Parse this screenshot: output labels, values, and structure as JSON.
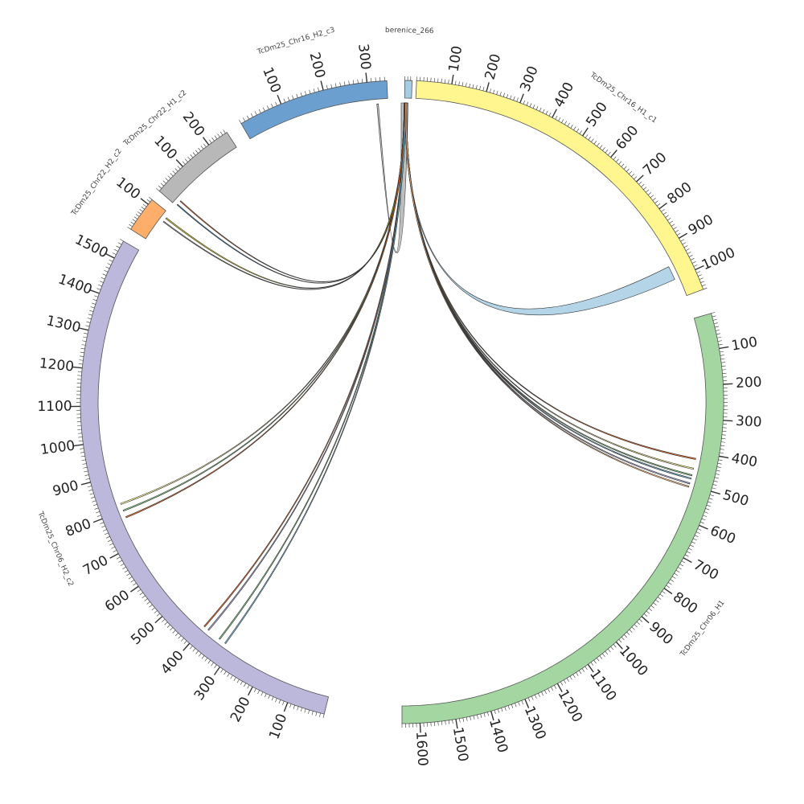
{
  "diagram": {
    "type": "circos",
    "segments": [
      {
        "id": "berenice",
        "name": "berenice_266",
        "length": 25,
        "color": "#a6cee3",
        "ticks": []
      },
      {
        "id": "h1c1",
        "name": "TcDm25_Chr16_H1_c1",
        "length": 1060,
        "color": "#fff68f",
        "ticks": [
          "100",
          "200",
          "300",
          "400",
          "500",
          "600",
          "700",
          "800",
          "900",
          "1000"
        ]
      },
      {
        "id": "h1",
        "name": "TcDm25_Chr06_H1",
        "length": 1650,
        "color": "#a3d6a0",
        "ticks": [
          "100",
          "200",
          "300",
          "400",
          "500",
          "600",
          "700",
          "800",
          "900",
          "1000",
          "1100",
          "1200",
          "1300",
          "1400",
          "1500",
          "1600"
        ]
      },
      {
        "id": "h2c2",
        "name": "TcDm25_Chr06_H2_c2",
        "length": 1550,
        "color": "#bcb8dc",
        "ticks": [
          "100",
          "200",
          "300",
          "400",
          "500",
          "600",
          "700",
          "800",
          "900",
          "1000",
          "1100",
          "1200",
          "1300",
          "1400",
          "1500"
        ]
      },
      {
        "id": "c22h2",
        "name": "TcDm25_Chr22_H2_c2",
        "length": 120,
        "color": "#fdae6b",
        "ticks": [
          "100"
        ]
      },
      {
        "id": "c22h1",
        "name": "TcDm25_Chr22_H1_c2",
        "length": 265,
        "color": "#b8b8b8",
        "ticks": [
          "100",
          "200"
        ]
      },
      {
        "id": "h2c3",
        "name": "TcDm25_Chr16_H2_c3",
        "length": 345,
        "color": "#6b9fcf",
        "ticks": [
          "100",
          "200",
          "300"
        ]
      }
    ],
    "links": [
      {
        "from": "berenice",
        "to": "h1c1",
        "color": "#a6cee3",
        "s": 0.15,
        "t": 980,
        "w": 45
      },
      {
        "from": "h2c3",
        "to": "berenice",
        "color": "#b3b3b3",
        "s": 320,
        "t": 0.0,
        "w": 22
      },
      {
        "from": "berenice",
        "to": "c22h1",
        "color": "#1f78b4",
        "s": 0.05,
        "t": 5,
        "w": 3
      },
      {
        "from": "berenice",
        "to": "c22h1",
        "color": "#e6550d",
        "s": 0.05,
        "t": 20,
        "w": 3
      },
      {
        "from": "berenice",
        "to": "c22h2",
        "color": "#999999",
        "s": 0.05,
        "t": 85,
        "w": 3
      },
      {
        "from": "berenice",
        "to": "c22h2",
        "color": "#d4c21a",
        "s": 0.05,
        "t": 100,
        "w": 4
      },
      {
        "from": "berenice",
        "to": "h2c2",
        "color": "#fff68f",
        "s": 0.08,
        "t": 820,
        "w": 4
      },
      {
        "from": "berenice",
        "to": "h2c2",
        "color": "#74c476",
        "s": 0.08,
        "t": 800,
        "w": 4
      },
      {
        "from": "berenice",
        "to": "h2c2",
        "color": "#e6550d",
        "s": 0.08,
        "t": 780,
        "w": 4
      },
      {
        "from": "berenice",
        "to": "h2c2",
        "color": "#e6550d",
        "s": 0.12,
        "t": 400,
        "w": 4
      },
      {
        "from": "berenice",
        "to": "h2c2",
        "color": "#9e9ac8",
        "s": 0.12,
        "t": 385,
        "w": 4
      },
      {
        "from": "berenice",
        "to": "h2c2",
        "color": "#74c476",
        "s": 0.12,
        "t": 345,
        "w": 4
      },
      {
        "from": "berenice",
        "to": "h2c2",
        "color": "#6baed6",
        "s": 0.12,
        "t": 325,
        "w": 4
      },
      {
        "from": "berenice",
        "to": "h1",
        "color": "#e6550d",
        "s": 0.2,
        "t": 420,
        "w": 4
      },
      {
        "from": "berenice",
        "to": "h1",
        "color": "#fff68f",
        "s": 0.2,
        "t": 450,
        "w": 4
      },
      {
        "from": "berenice",
        "to": "h1",
        "color": "#74c476",
        "s": 0.2,
        "t": 470,
        "w": 4
      },
      {
        "from": "berenice",
        "to": "h1",
        "color": "#6baed6",
        "s": 0.2,
        "t": 480,
        "w": 4
      },
      {
        "from": "berenice",
        "to": "h1",
        "color": "#9e9ac8",
        "s": 0.2,
        "t": 495,
        "w": 4
      },
      {
        "from": "berenice",
        "to": "h1",
        "color": "#fdae6b",
        "s": 0.2,
        "t": 505,
        "w": 4
      }
    ]
  }
}
